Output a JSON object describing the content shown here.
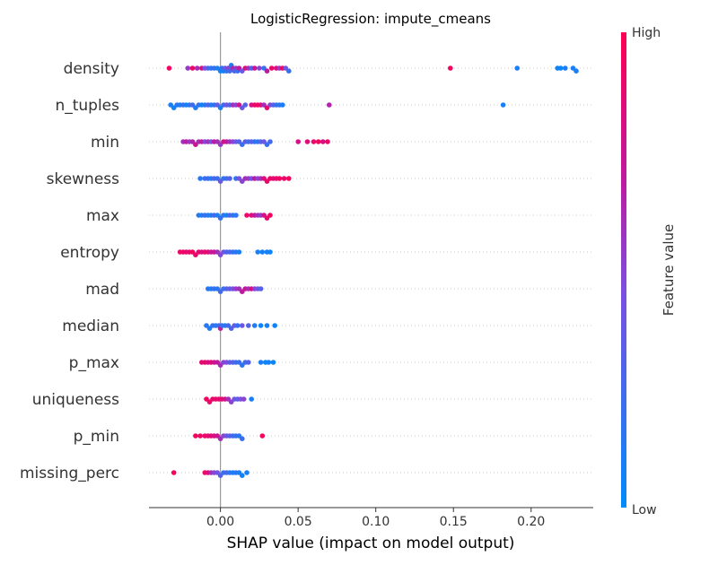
{
  "chart_data": {
    "type": "scatter",
    "subtype": "shap-beeswarm",
    "title": "LogisticRegression: impute_cmeans",
    "xlabel": "SHAP value (impact on model output)",
    "xlim": [
      -0.046,
      0.24
    ],
    "xticks": [
      0.0,
      0.05,
      0.1,
      0.15,
      0.2
    ],
    "xtick_labels": [
      "0.00",
      "0.05",
      "0.10",
      "0.15",
      "0.20"
    ],
    "colorbar": {
      "title": "Feature value",
      "high_label": "High",
      "low_label": "Low",
      "low_color": "#008bfb",
      "high_color": "#ff0052"
    },
    "features": [
      {
        "name": "density",
        "points": [
          [
            -0.033,
            0.95
          ],
          [
            -0.021,
            0.55
          ],
          [
            -0.018,
            0.9
          ],
          [
            -0.015,
            0.6
          ],
          [
            -0.012,
            0.8
          ],
          [
            -0.01,
            0.45
          ],
          [
            -0.008,
            0.3
          ],
          [
            -0.006,
            0.15
          ],
          [
            -0.004,
            0.2
          ],
          [
            -0.002,
            0.1
          ],
          [
            0.0,
            0.05
          ],
          [
            0.001,
            0.2
          ],
          [
            0.002,
            0.1
          ],
          [
            0.003,
            0.35
          ],
          [
            0.004,
            0.15
          ],
          [
            0.005,
            0.5
          ],
          [
            0.006,
            0.25
          ],
          [
            0.007,
            0.1
          ],
          [
            0.008,
            0.65
          ],
          [
            0.009,
            0.3
          ],
          [
            0.01,
            0.55
          ],
          [
            0.011,
            0.2
          ],
          [
            0.012,
            0.7
          ],
          [
            0.014,
            0.4
          ],
          [
            0.016,
            0.85
          ],
          [
            0.018,
            0.6
          ],
          [
            0.02,
            0.3
          ],
          [
            0.022,
            0.75
          ],
          [
            0.025,
            0.5
          ],
          [
            0.028,
            0.2
          ],
          [
            0.03,
            0.7
          ],
          [
            0.033,
            0.9
          ],
          [
            0.036,
            0.8
          ],
          [
            0.038,
            0.55
          ],
          [
            0.04,
            0.95
          ],
          [
            0.042,
            0.4
          ],
          [
            0.044,
            0.2
          ],
          [
            0.148,
            0.95
          ],
          [
            0.191,
            0.1
          ],
          [
            0.217,
            0.05
          ],
          [
            0.219,
            0.05
          ],
          [
            0.222,
            0.1
          ],
          [
            0.227,
            0.1
          ],
          [
            0.229,
            0.1
          ]
        ]
      },
      {
        "name": "n_tuples",
        "points": [
          [
            -0.032,
            0.1
          ],
          [
            -0.03,
            0.05
          ],
          [
            -0.028,
            0.15
          ],
          [
            -0.026,
            0.1
          ],
          [
            -0.024,
            0.2
          ],
          [
            -0.022,
            0.05
          ],
          [
            -0.02,
            0.15
          ],
          [
            -0.018,
            0.25
          ],
          [
            -0.016,
            0.1
          ],
          [
            -0.014,
            0.2
          ],
          [
            -0.012,
            0.05
          ],
          [
            -0.01,
            0.15
          ],
          [
            -0.008,
            0.3
          ],
          [
            -0.006,
            0.1
          ],
          [
            -0.004,
            0.2
          ],
          [
            -0.002,
            0.35
          ],
          [
            0.0,
            0.1
          ],
          [
            0.002,
            0.2
          ],
          [
            0.004,
            0.4
          ],
          [
            0.006,
            0.3
          ],
          [
            0.008,
            0.6
          ],
          [
            0.01,
            0.5
          ],
          [
            0.012,
            0.75
          ],
          [
            0.014,
            0.4
          ],
          [
            0.016,
            0.3
          ],
          [
            0.02,
            0.8
          ],
          [
            0.022,
            0.9
          ],
          [
            0.024,
            0.95
          ],
          [
            0.026,
            0.85
          ],
          [
            0.028,
            0.6
          ],
          [
            0.03,
            0.9
          ],
          [
            0.032,
            0.5
          ],
          [
            0.034,
            0.3
          ],
          [
            0.036,
            0.2
          ],
          [
            0.038,
            0.15
          ],
          [
            0.04,
            0.1
          ],
          [
            0.07,
            0.65
          ],
          [
            0.182,
            0.1
          ]
        ]
      },
      {
        "name": "min",
        "points": [
          [
            -0.024,
            0.6
          ],
          [
            -0.022,
            0.7
          ],
          [
            -0.02,
            0.55
          ],
          [
            -0.018,
            0.65
          ],
          [
            -0.016,
            0.75
          ],
          [
            -0.014,
            0.6
          ],
          [
            -0.012,
            0.7
          ],
          [
            -0.01,
            0.5
          ],
          [
            -0.008,
            0.6
          ],
          [
            -0.006,
            0.4
          ],
          [
            -0.004,
            0.7
          ],
          [
            -0.002,
            0.6
          ],
          [
            0.0,
            0.55
          ],
          [
            0.002,
            0.8
          ],
          [
            0.004,
            0.7
          ],
          [
            0.006,
            0.6
          ],
          [
            0.008,
            0.5
          ],
          [
            0.01,
            0.4
          ],
          [
            0.012,
            0.3
          ],
          [
            0.014,
            0.2
          ],
          [
            0.016,
            0.35
          ],
          [
            0.018,
            0.25
          ],
          [
            0.02,
            0.3
          ],
          [
            0.022,
            0.2
          ],
          [
            0.024,
            0.15
          ],
          [
            0.026,
            0.3
          ],
          [
            0.028,
            0.4
          ],
          [
            0.03,
            0.2
          ],
          [
            0.032,
            0.25
          ],
          [
            0.05,
            0.8
          ],
          [
            0.056,
            0.85
          ],
          [
            0.06,
            0.9
          ],
          [
            0.063,
            0.95
          ],
          [
            0.066,
            0.8
          ],
          [
            0.069,
            0.9
          ]
        ]
      },
      {
        "name": "skewness",
        "points": [
          [
            -0.013,
            0.15
          ],
          [
            -0.01,
            0.2
          ],
          [
            -0.008,
            0.25
          ],
          [
            -0.006,
            0.1
          ],
          [
            -0.004,
            0.3
          ],
          [
            -0.002,
            0.2
          ],
          [
            0.0,
            0.4
          ],
          [
            0.002,
            0.15
          ],
          [
            0.004,
            0.25
          ],
          [
            0.006,
            0.3
          ],
          [
            0.01,
            0.15
          ],
          [
            0.012,
            0.45
          ],
          [
            0.014,
            0.5
          ],
          [
            0.016,
            0.6
          ],
          [
            0.018,
            0.55
          ],
          [
            0.02,
            0.45
          ],
          [
            0.022,
            0.7
          ],
          [
            0.024,
            0.5
          ],
          [
            0.026,
            0.6
          ],
          [
            0.028,
            0.85
          ],
          [
            0.03,
            0.9
          ],
          [
            0.032,
            0.95
          ],
          [
            0.034,
            0.85
          ],
          [
            0.036,
            0.9
          ],
          [
            0.038,
            0.95
          ],
          [
            0.041,
            0.9
          ],
          [
            0.044,
            0.95
          ]
        ]
      },
      {
        "name": "max",
        "points": [
          [
            -0.014,
            0.1
          ],
          [
            -0.012,
            0.15
          ],
          [
            -0.01,
            0.2
          ],
          [
            -0.008,
            0.1
          ],
          [
            -0.006,
            0.15
          ],
          [
            -0.004,
            0.25
          ],
          [
            -0.002,
            0.1
          ],
          [
            0.0,
            0.2
          ],
          [
            0.002,
            0.15
          ],
          [
            0.004,
            0.1
          ],
          [
            0.006,
            0.25
          ],
          [
            0.008,
            0.2
          ],
          [
            0.01,
            0.15
          ],
          [
            0.017,
            0.9
          ],
          [
            0.02,
            0.85
          ],
          [
            0.022,
            0.7
          ],
          [
            0.024,
            0.6
          ],
          [
            0.026,
            0.55
          ],
          [
            0.028,
            0.8
          ],
          [
            0.03,
            0.9
          ],
          [
            0.032,
            0.95
          ]
        ]
      },
      {
        "name": "entropy",
        "points": [
          [
            -0.026,
            0.9
          ],
          [
            -0.024,
            0.95
          ],
          [
            -0.022,
            0.85
          ],
          [
            -0.02,
            0.9
          ],
          [
            -0.018,
            0.95
          ],
          [
            -0.016,
            0.88
          ],
          [
            -0.014,
            0.92
          ],
          [
            -0.012,
            0.8
          ],
          [
            -0.01,
            0.9
          ],
          [
            -0.008,
            0.85
          ],
          [
            -0.006,
            0.7
          ],
          [
            -0.004,
            0.75
          ],
          [
            -0.002,
            0.6
          ],
          [
            0.0,
            0.5
          ],
          [
            0.002,
            0.4
          ],
          [
            0.004,
            0.3
          ],
          [
            0.006,
            0.25
          ],
          [
            0.008,
            0.2
          ],
          [
            0.01,
            0.15
          ],
          [
            0.012,
            0.1
          ],
          [
            0.024,
            0.1
          ],
          [
            0.027,
            0.05
          ],
          [
            0.03,
            0.1
          ],
          [
            0.032,
            0.05
          ]
        ]
      },
      {
        "name": "mad",
        "points": [
          [
            -0.008,
            0.15
          ],
          [
            -0.006,
            0.1
          ],
          [
            -0.004,
            0.2
          ],
          [
            -0.002,
            0.15
          ],
          [
            0.0,
            0.25
          ],
          [
            0.002,
            0.2
          ],
          [
            0.004,
            0.3
          ],
          [
            0.006,
            0.35
          ],
          [
            0.008,
            0.45
          ],
          [
            0.01,
            0.55
          ],
          [
            0.012,
            0.6
          ],
          [
            0.014,
            0.7
          ],
          [
            0.016,
            0.75
          ],
          [
            0.018,
            0.6
          ],
          [
            0.02,
            0.8
          ],
          [
            0.022,
            0.5
          ],
          [
            0.024,
            0.4
          ],
          [
            0.026,
            0.3
          ]
        ]
      },
      {
        "name": "median",
        "points": [
          [
            -0.009,
            0.15
          ],
          [
            -0.007,
            0.1
          ],
          [
            -0.005,
            0.2
          ],
          [
            -0.003,
            0.15
          ],
          [
            -0.001,
            0.25
          ],
          [
            0.0,
            0.7
          ],
          [
            0.001,
            0.2
          ],
          [
            0.003,
            0.15
          ],
          [
            0.005,
            0.25
          ],
          [
            0.007,
            0.3
          ],
          [
            0.009,
            0.35
          ],
          [
            0.011,
            0.2
          ],
          [
            0.014,
            0.4
          ],
          [
            0.018,
            0.3
          ],
          [
            0.022,
            0.1
          ],
          [
            0.026,
            0.05
          ],
          [
            0.03,
            0.08
          ],
          [
            0.035,
            0.05
          ]
        ]
      },
      {
        "name": "p_max",
        "points": [
          [
            -0.012,
            0.85
          ],
          [
            -0.01,
            0.9
          ],
          [
            -0.008,
            0.8
          ],
          [
            -0.006,
            0.88
          ],
          [
            -0.004,
            0.75
          ],
          [
            -0.002,
            0.7
          ],
          [
            0.0,
            0.6
          ],
          [
            0.002,
            0.5
          ],
          [
            0.004,
            0.45
          ],
          [
            0.006,
            0.35
          ],
          [
            0.008,
            0.3
          ],
          [
            0.01,
            0.25
          ],
          [
            0.012,
            0.2
          ],
          [
            0.014,
            0.15
          ],
          [
            0.016,
            0.25
          ],
          [
            0.018,
            0.3
          ],
          [
            0.026,
            0.1
          ],
          [
            0.029,
            0.05
          ],
          [
            0.031,
            0.08
          ],
          [
            0.034,
            0.05
          ]
        ]
      },
      {
        "name": "uniqueness",
        "points": [
          [
            -0.009,
            0.95
          ],
          [
            -0.007,
            0.9
          ],
          [
            -0.005,
            0.92
          ],
          [
            -0.003,
            0.88
          ],
          [
            -0.001,
            0.9
          ],
          [
            0.001,
            0.85
          ],
          [
            0.003,
            0.8
          ],
          [
            0.005,
            0.6
          ],
          [
            0.007,
            0.5
          ],
          [
            0.009,
            0.4
          ],
          [
            0.011,
            0.35
          ],
          [
            0.013,
            0.45
          ],
          [
            0.015,
            0.5
          ],
          [
            0.02,
            0.1
          ]
        ]
      },
      {
        "name": "p_min",
        "points": [
          [
            -0.016,
            0.95
          ],
          [
            -0.013,
            0.92
          ],
          [
            -0.01,
            0.9
          ],
          [
            -0.008,
            0.85
          ],
          [
            -0.006,
            0.88
          ],
          [
            -0.004,
            0.8
          ],
          [
            -0.002,
            0.75
          ],
          [
            0.0,
            0.6
          ],
          [
            0.002,
            0.5
          ],
          [
            0.004,
            0.4
          ],
          [
            0.006,
            0.3
          ],
          [
            0.008,
            0.25
          ],
          [
            0.01,
            0.2
          ],
          [
            0.012,
            0.15
          ],
          [
            0.014,
            0.2
          ],
          [
            0.027,
            0.95
          ]
        ]
      },
      {
        "name": "missing_perc",
        "points": [
          [
            -0.03,
            0.95
          ],
          [
            -0.01,
            0.9
          ],
          [
            -0.008,
            0.85
          ],
          [
            -0.006,
            0.6
          ],
          [
            -0.004,
            0.5
          ],
          [
            -0.002,
            0.4
          ],
          [
            0.0,
            0.3
          ],
          [
            0.002,
            0.2
          ],
          [
            0.004,
            0.25
          ],
          [
            0.006,
            0.15
          ],
          [
            0.008,
            0.1
          ],
          [
            0.01,
            0.15
          ],
          [
            0.012,
            0.1
          ],
          [
            0.014,
            0.05
          ],
          [
            0.017,
            0.08
          ]
        ]
      }
    ]
  }
}
